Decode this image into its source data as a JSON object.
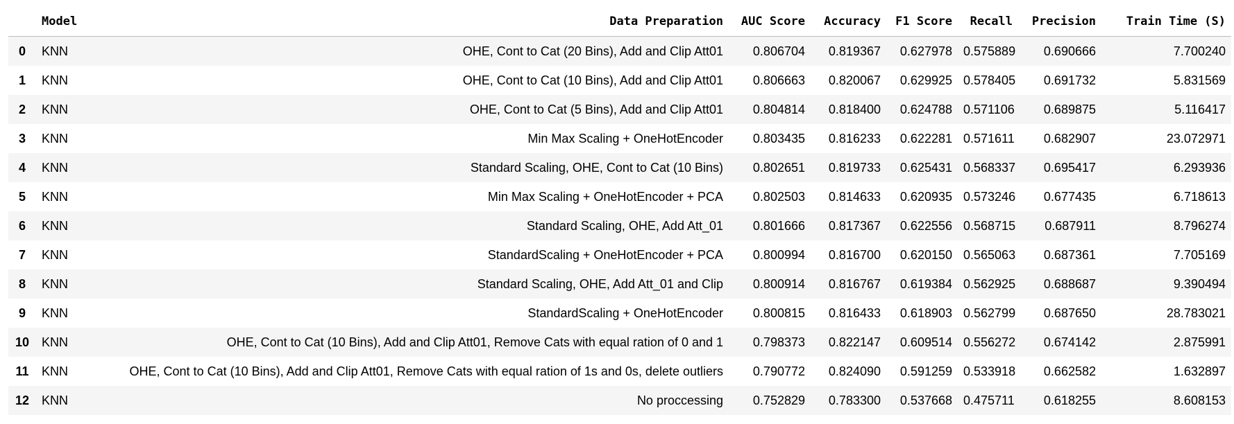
{
  "headers": {
    "index": "",
    "model": "Model",
    "data_preparation": "Data Preparation",
    "auc_score": "AUC Score",
    "accuracy": "Accuracy",
    "f1_score": "F1 Score",
    "recall": "Recall",
    "precision": "Precision",
    "train_time": "Train Time (S)"
  },
  "rows": [
    {
      "index": "0",
      "model": "KNN",
      "prep": "OHE, Cont to Cat (20 Bins), Add and Clip Att01",
      "auc": "0.806704",
      "accuracy": "0.819367",
      "f1": "0.627978",
      "recall": "0.575889",
      "precision": "0.690666",
      "time": "7.700240"
    },
    {
      "index": "1",
      "model": "KNN",
      "prep": "OHE, Cont to Cat (10 Bins), Add and Clip Att01",
      "auc": "0.806663",
      "accuracy": "0.820067",
      "f1": "0.629925",
      "recall": "0.578405",
      "precision": "0.691732",
      "time": "5.831569"
    },
    {
      "index": "2",
      "model": "KNN",
      "prep": "OHE, Cont to Cat (5 Bins), Add and Clip Att01",
      "auc": "0.804814",
      "accuracy": "0.818400",
      "f1": "0.624788",
      "recall": "0.571106",
      "precision": "0.689875",
      "time": "5.116417"
    },
    {
      "index": "3",
      "model": "KNN",
      "prep": "Min Max Scaling + OneHotEncoder",
      "auc": "0.803435",
      "accuracy": "0.816233",
      "f1": "0.622281",
      "recall": "0.571611",
      "precision": "0.682907",
      "time": "23.072971"
    },
    {
      "index": "4",
      "model": "KNN",
      "prep": "Standard Scaling, OHE, Cont to Cat (10 Bins)",
      "auc": "0.802651",
      "accuracy": "0.819733",
      "f1": "0.625431",
      "recall": "0.568337",
      "precision": "0.695417",
      "time": "6.293936"
    },
    {
      "index": "5",
      "model": "KNN",
      "prep": "Min Max Scaling + OneHotEncoder + PCA",
      "auc": "0.802503",
      "accuracy": "0.814633",
      "f1": "0.620935",
      "recall": "0.573246",
      "precision": "0.677435",
      "time": "6.718613"
    },
    {
      "index": "6",
      "model": "KNN",
      "prep": "Standard Scaling, OHE, Add Att_01",
      "auc": "0.801666",
      "accuracy": "0.817367",
      "f1": "0.622556",
      "recall": "0.568715",
      "precision": "0.687911",
      "time": "8.796274"
    },
    {
      "index": "7",
      "model": "KNN",
      "prep": "StandardScaling + OneHotEncoder + PCA",
      "auc": "0.800994",
      "accuracy": "0.816700",
      "f1": "0.620150",
      "recall": "0.565063",
      "precision": "0.687361",
      "time": "7.705169"
    },
    {
      "index": "8",
      "model": "KNN",
      "prep": "Standard Scaling, OHE, Add Att_01 and Clip",
      "auc": "0.800914",
      "accuracy": "0.816767",
      "f1": "0.619384",
      "recall": "0.562925",
      "precision": "0.688687",
      "time": "9.390494"
    },
    {
      "index": "9",
      "model": "KNN",
      "prep": "StandardScaling + OneHotEncoder",
      "auc": "0.800815",
      "accuracy": "0.816433",
      "f1": "0.618903",
      "recall": "0.562799",
      "precision": "0.687650",
      "time": "28.783021"
    },
    {
      "index": "10",
      "model": "KNN",
      "prep": "OHE, Cont to Cat (10 Bins), Add and Clip Att01, Remove Cats with equal ration of 0 and 1",
      "auc": "0.798373",
      "accuracy": "0.822147",
      "f1": "0.609514",
      "recall": "0.556272",
      "precision": "0.674142",
      "time": "2.875991"
    },
    {
      "index": "11",
      "model": "KNN",
      "prep": "OHE, Cont to Cat (10 Bins), Add and Clip Att01, Remove Cats with equal ration of 1s and 0s, delete outliers",
      "auc": "0.790772",
      "accuracy": "0.824090",
      "f1": "0.591259",
      "recall": "0.533918",
      "precision": "0.662582",
      "time": "1.632897"
    },
    {
      "index": "12",
      "model": "KNN",
      "prep": "No proccessing",
      "auc": "0.752829",
      "accuracy": "0.783300",
      "f1": "0.537668",
      "recall": "0.475711",
      "precision": "0.618255",
      "time": "8.608153"
    }
  ]
}
